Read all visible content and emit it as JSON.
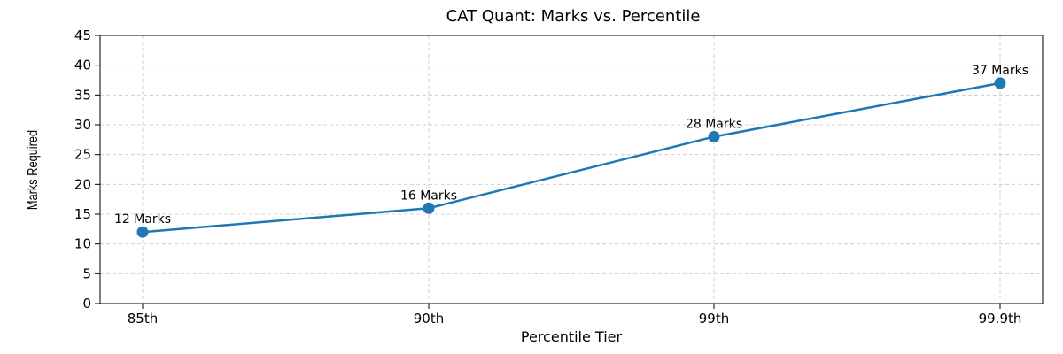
{
  "chart_data": {
    "type": "line",
    "title": "CAT Quant: Marks vs. Percentile",
    "xlabel": "Percentile Tier",
    "ylabel": "Marks Required",
    "categories": [
      "85th",
      "90th",
      "99th",
      "99.9th"
    ],
    "series": [
      {
        "values": [
          12,
          16,
          28,
          37
        ],
        "data_labels": [
          "12 Marks",
          "16 Marks",
          "28 Marks",
          "37 Marks"
        ],
        "color": "#1f77b4"
      }
    ],
    "ylim": [
      0,
      45
    ],
    "yticks": [
      0,
      5,
      10,
      15,
      20,
      25,
      30,
      35,
      40,
      45
    ],
    "grid": true,
    "legend": "none"
  }
}
